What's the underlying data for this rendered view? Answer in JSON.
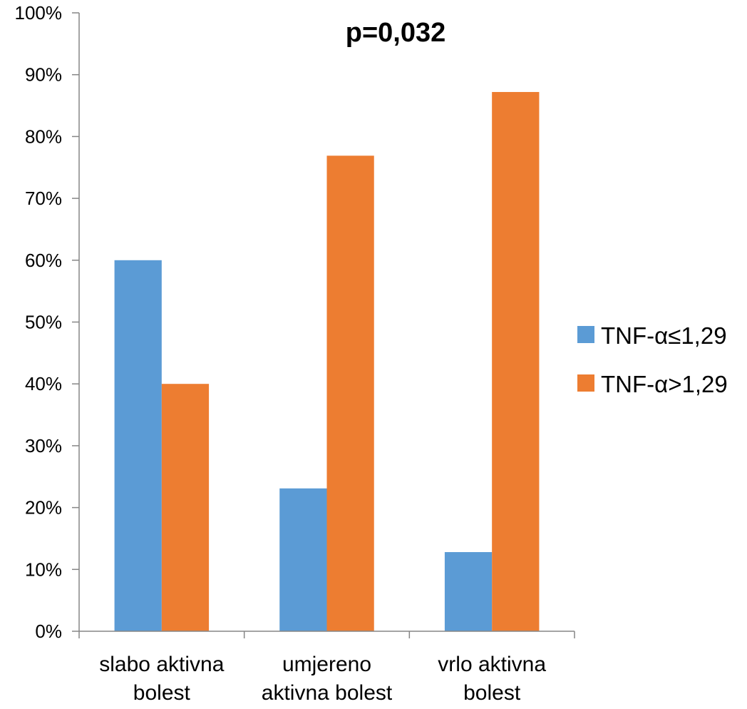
{
  "chart_data": {
    "type": "bar",
    "title": "p=0,032",
    "categories": [
      [
        "slabo aktivna",
        "bolest"
      ],
      [
        "umjereno",
        "aktivna bolest"
      ],
      [
        "vrlo aktivna",
        "bolest"
      ]
    ],
    "series": [
      {
        "name": "TNF-α≤1,29",
        "color": "#5B9BD5",
        "values": [
          60,
          23.1,
          12.8
        ]
      },
      {
        "name": "TNF-α>1,29",
        "color": "#ED7D31",
        "values": [
          40,
          76.9,
          87.2
        ]
      }
    ],
    "ylim": [
      0,
      100
    ],
    "yticks": [
      0,
      10,
      20,
      30,
      40,
      50,
      60,
      70,
      80,
      90,
      100
    ],
    "ytick_labels": [
      "0%",
      "10%",
      "20%",
      "30%",
      "40%",
      "50%",
      "60%",
      "70%",
      "80%",
      "90%",
      "100%"
    ],
    "grid": false,
    "legend_position": "right",
    "axis_color": "#868686"
  }
}
